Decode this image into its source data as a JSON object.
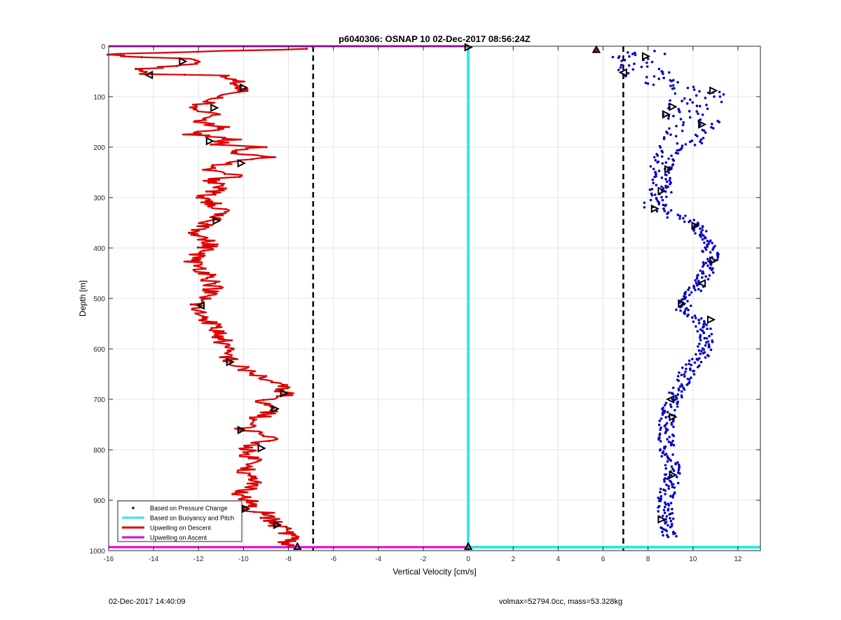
{
  "chart_data": {
    "type": "scatter",
    "title": "p6040306: OSNAP 10 02-Dec-2017 08:56:24Z",
    "xlabel": "Vertical Velocity [cm/s]",
    "ylabel": "Depth [m]",
    "xlim": [
      -16,
      13
    ],
    "ylim": [
      0,
      1000
    ],
    "y_reversed": true,
    "grid": true,
    "x_ticks": [
      -16,
      -14,
      -12,
      -10,
      -8,
      -6,
      -4,
      -2,
      0,
      2,
      4,
      6,
      8,
      10,
      12
    ],
    "y_ticks": [
      0,
      100,
      200,
      300,
      400,
      500,
      600,
      700,
      800,
      900,
      1000
    ],
    "legend_position": "bottom-left",
    "legend": [
      {
        "label": "Based on Pressure Change",
        "color": "#0000cc",
        "style": "dot"
      },
      {
        "label": "Based on Buoyancy and Pitch",
        "color": "#33e6e6",
        "style": "line"
      },
      {
        "label": "Upwelling on Descent",
        "color": "#dd0000",
        "style": "line"
      },
      {
        "label": "Upwelling on Ascent",
        "color": "#dd00dd",
        "style": "line"
      }
    ],
    "reference_lines_x": [
      -6.9,
      6.9
    ],
    "series": [
      {
        "name": "Based on Pressure Change",
        "kind": "scatter",
        "color": "#0000cc",
        "profile": [
          [
            10,
            7.6
          ],
          [
            30,
            7.5
          ],
          [
            60,
            8.1
          ],
          [
            90,
            10.3
          ],
          [
            110,
            10.1
          ],
          [
            130,
            9.6
          ],
          [
            150,
            10.2
          ],
          [
            170,
            10.0
          ],
          [
            190,
            9.3
          ],
          [
            210,
            8.9
          ],
          [
            230,
            8.6
          ],
          [
            250,
            8.7
          ],
          [
            270,
            8.5
          ],
          [
            290,
            8.6
          ],
          [
            320,
            8.2
          ],
          [
            350,
            10.1
          ],
          [
            380,
            10.5
          ],
          [
            410,
            10.8
          ],
          [
            440,
            10.7
          ],
          [
            470,
            10.3
          ],
          [
            500,
            9.8
          ],
          [
            520,
            9.5
          ],
          [
            550,
            10.4
          ],
          [
            580,
            10.6
          ],
          [
            610,
            10.5
          ],
          [
            640,
            9.8
          ],
          [
            670,
            9.5
          ],
          [
            700,
            9.1
          ],
          [
            730,
            8.9
          ],
          [
            760,
            8.8
          ],
          [
            790,
            8.8
          ],
          [
            820,
            9.0
          ],
          [
            850,
            9.1
          ],
          [
            880,
            8.9
          ],
          [
            910,
            8.7
          ],
          [
            940,
            8.8
          ],
          [
            975,
            9.0
          ]
        ]
      },
      {
        "name": "Based on Buoyancy and Pitch",
        "kind": "line",
        "color": "#33e6e6",
        "points": [
          [
            0.0,
            0
          ],
          [
            0.0,
            993
          ],
          [
            13.0,
            993
          ]
        ]
      },
      {
        "name": "Upwelling on Descent",
        "kind": "line",
        "color": "#dd0000",
        "points": [
          [
            -7.0,
            5
          ],
          [
            -15.6,
            15
          ],
          [
            -15.8,
            20
          ],
          [
            -12.5,
            25
          ],
          [
            -12.0,
            35
          ],
          [
            -14.5,
            45
          ],
          [
            -14.3,
            55
          ],
          [
            -11.0,
            58
          ],
          [
            -10.2,
            70
          ],
          [
            -10.0,
            85
          ],
          [
            -11.0,
            100
          ],
          [
            -11.5,
            110
          ],
          [
            -12.5,
            125
          ],
          [
            -11.0,
            135
          ],
          [
            -12.0,
            150
          ],
          [
            -11.0,
            160
          ],
          [
            -12.3,
            175
          ],
          [
            -10.5,
            185
          ],
          [
            -11.5,
            195
          ],
          [
            -9.2,
            200
          ],
          [
            -10.5,
            210
          ],
          [
            -9.0,
            220
          ],
          [
            -10.5,
            230
          ],
          [
            -12.0,
            245
          ],
          [
            -10.0,
            255
          ],
          [
            -11.5,
            265
          ],
          [
            -11.0,
            280
          ],
          [
            -11.8,
            300
          ],
          [
            -11.0,
            325
          ],
          [
            -11.5,
            345
          ],
          [
            -12.0,
            370
          ],
          [
            -11.5,
            395
          ],
          [
            -12.3,
            425
          ],
          [
            -11.5,
            455
          ],
          [
            -11.3,
            480
          ],
          [
            -11.8,
            500
          ],
          [
            -12.2,
            520
          ],
          [
            -11.5,
            545
          ],
          [
            -11.0,
            575
          ],
          [
            -10.8,
            605
          ],
          [
            -10.5,
            630
          ],
          [
            -9.5,
            650
          ],
          [
            -8.5,
            670
          ],
          [
            -8.0,
            690
          ],
          [
            -9.5,
            705
          ],
          [
            -8.5,
            720
          ],
          [
            -9.5,
            740
          ],
          [
            -10.0,
            760
          ],
          [
            -8.6,
            775
          ],
          [
            -9.5,
            790
          ],
          [
            -10.0,
            805
          ],
          [
            -9.3,
            825
          ],
          [
            -10.0,
            845
          ],
          [
            -9.5,
            865
          ],
          [
            -10.1,
            890
          ],
          [
            -9.5,
            910
          ],
          [
            -10.5,
            918
          ],
          [
            -9.0,
            925
          ],
          [
            -8.7,
            945
          ],
          [
            -8.1,
            960
          ],
          [
            -7.8,
            975
          ],
          [
            -8.2,
            985
          ],
          [
            -7.6,
            993
          ]
        ]
      },
      {
        "name": "Upwelling on Ascent",
        "kind": "line",
        "color": "#dd00dd",
        "segments": [
          [
            [
              -16.0,
              0
            ],
            [
              0.0,
              0
            ]
          ],
          [
            [
              -16.0,
              993
            ],
            [
              0.0,
              993
            ]
          ]
        ]
      }
    ],
    "markers": [
      {
        "x": 0.0,
        "y": 2,
        "dir": "right"
      },
      {
        "x": -12.7,
        "y": 30,
        "dir": "right"
      },
      {
        "x": -14.2,
        "y": 57,
        "dir": "left"
      },
      {
        "x": -10.0,
        "y": 82,
        "dir": "right"
      },
      {
        "x": -11.3,
        "y": 122,
        "dir": "right"
      },
      {
        "x": -11.5,
        "y": 188,
        "dir": "right"
      },
      {
        "x": -10.1,
        "y": 232,
        "dir": "right"
      },
      {
        "x": -11.2,
        "y": 346,
        "dir": "right"
      },
      {
        "x": -11.9,
        "y": 514,
        "dir": "left"
      },
      {
        "x": -10.6,
        "y": 626,
        "dir": "right"
      },
      {
        "x": -8.2,
        "y": 688,
        "dir": "right"
      },
      {
        "x": -8.6,
        "y": 719,
        "dir": "right"
      },
      {
        "x": -10.1,
        "y": 761,
        "dir": "right"
      },
      {
        "x": -9.2,
        "y": 797,
        "dir": "right"
      },
      {
        "x": -9.9,
        "y": 917,
        "dir": "right"
      },
      {
        "x": -8.5,
        "y": 949,
        "dir": "right"
      },
      {
        "x": -7.6,
        "y": 992,
        "dir": "up"
      },
      {
        "x": 0.0,
        "y": 992,
        "dir": "up"
      },
      {
        "x": 5.7,
        "y": 7,
        "dir": "up",
        "fill": "#dd0000"
      },
      {
        "x": 7.9,
        "y": 20,
        "dir": "right"
      },
      {
        "x": 6.9,
        "y": 52,
        "dir": "left"
      },
      {
        "x": 10.9,
        "y": 88,
        "dir": "right"
      },
      {
        "x": 9.1,
        "y": 120,
        "dir": "right"
      },
      {
        "x": 8.8,
        "y": 135,
        "dir": "right"
      },
      {
        "x": 10.4,
        "y": 155,
        "dir": "right"
      },
      {
        "x": 8.9,
        "y": 244,
        "dir": "right"
      },
      {
        "x": 8.6,
        "y": 287,
        "dir": "right"
      },
      {
        "x": 8.3,
        "y": 322,
        "dir": "right"
      },
      {
        "x": 10.1,
        "y": 356,
        "dir": "right"
      },
      {
        "x": 10.9,
        "y": 425,
        "dir": "right"
      },
      {
        "x": 10.4,
        "y": 470,
        "dir": "left"
      },
      {
        "x": 9.5,
        "y": 510,
        "dir": "right"
      },
      {
        "x": 10.8,
        "y": 542,
        "dir": "right"
      },
      {
        "x": 9.0,
        "y": 700,
        "dir": "left"
      },
      {
        "x": 9.1,
        "y": 735,
        "dir": "right"
      },
      {
        "x": 9.1,
        "y": 850,
        "dir": "right"
      },
      {
        "x": 8.6,
        "y": 938,
        "dir": "right"
      }
    ]
  },
  "footer": {
    "timestamp": "02-Dec-2017 14:40:09",
    "info": "volmax=52794.0cc, mass=53.328kg"
  }
}
